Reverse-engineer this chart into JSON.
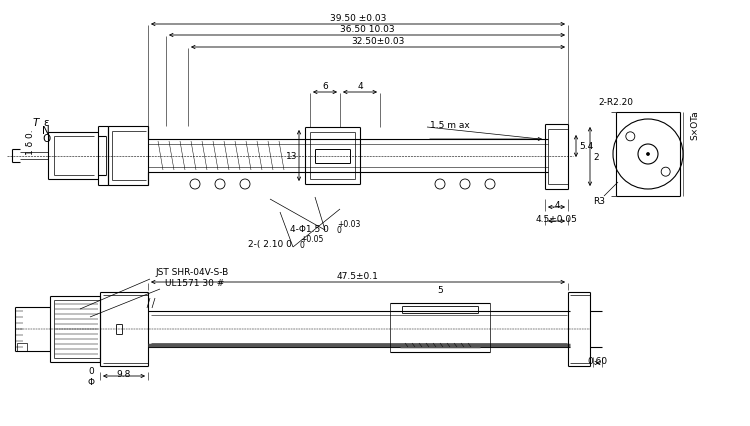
{
  "bg_color": "#ffffff",
  "line_color": "#000000",
  "fs": 6.5,
  "lw": 0.8,
  "top_dims": {
    "d1": "39.50 ±0.03",
    "d2": "36.50 10.03",
    "d3": "32.50±0.03",
    "d4": "6",
    "d5": "4",
    "d6": "1.5 m ax",
    "d7": "13",
    "d8": "5.4",
    "d9": "2",
    "d10": ".4",
    "d11": "4.5±0.05",
    "d12": "4-Φ1.5 0",
    "d13": "+0.03",
    "d14": "2-( 2.10 0",
    "d15": "+0.05",
    "d16_T": "T",
    "d16_e": "ε",
    "d16_N": "N",
    "d16_O": "O",
    "d17": "1 δ 0.",
    "d18": "2-R2.20",
    "d19": "R3",
    "d20": "S×OTa"
  },
  "bot_dims": {
    "jst": "JST SHR-04V-S-B",
    "ul": "UL1571 30 #",
    "len": "47.5±0.1",
    "gap": "0.60",
    "s": "5",
    "d": "9.8",
    "phi": "0\nΦ"
  }
}
